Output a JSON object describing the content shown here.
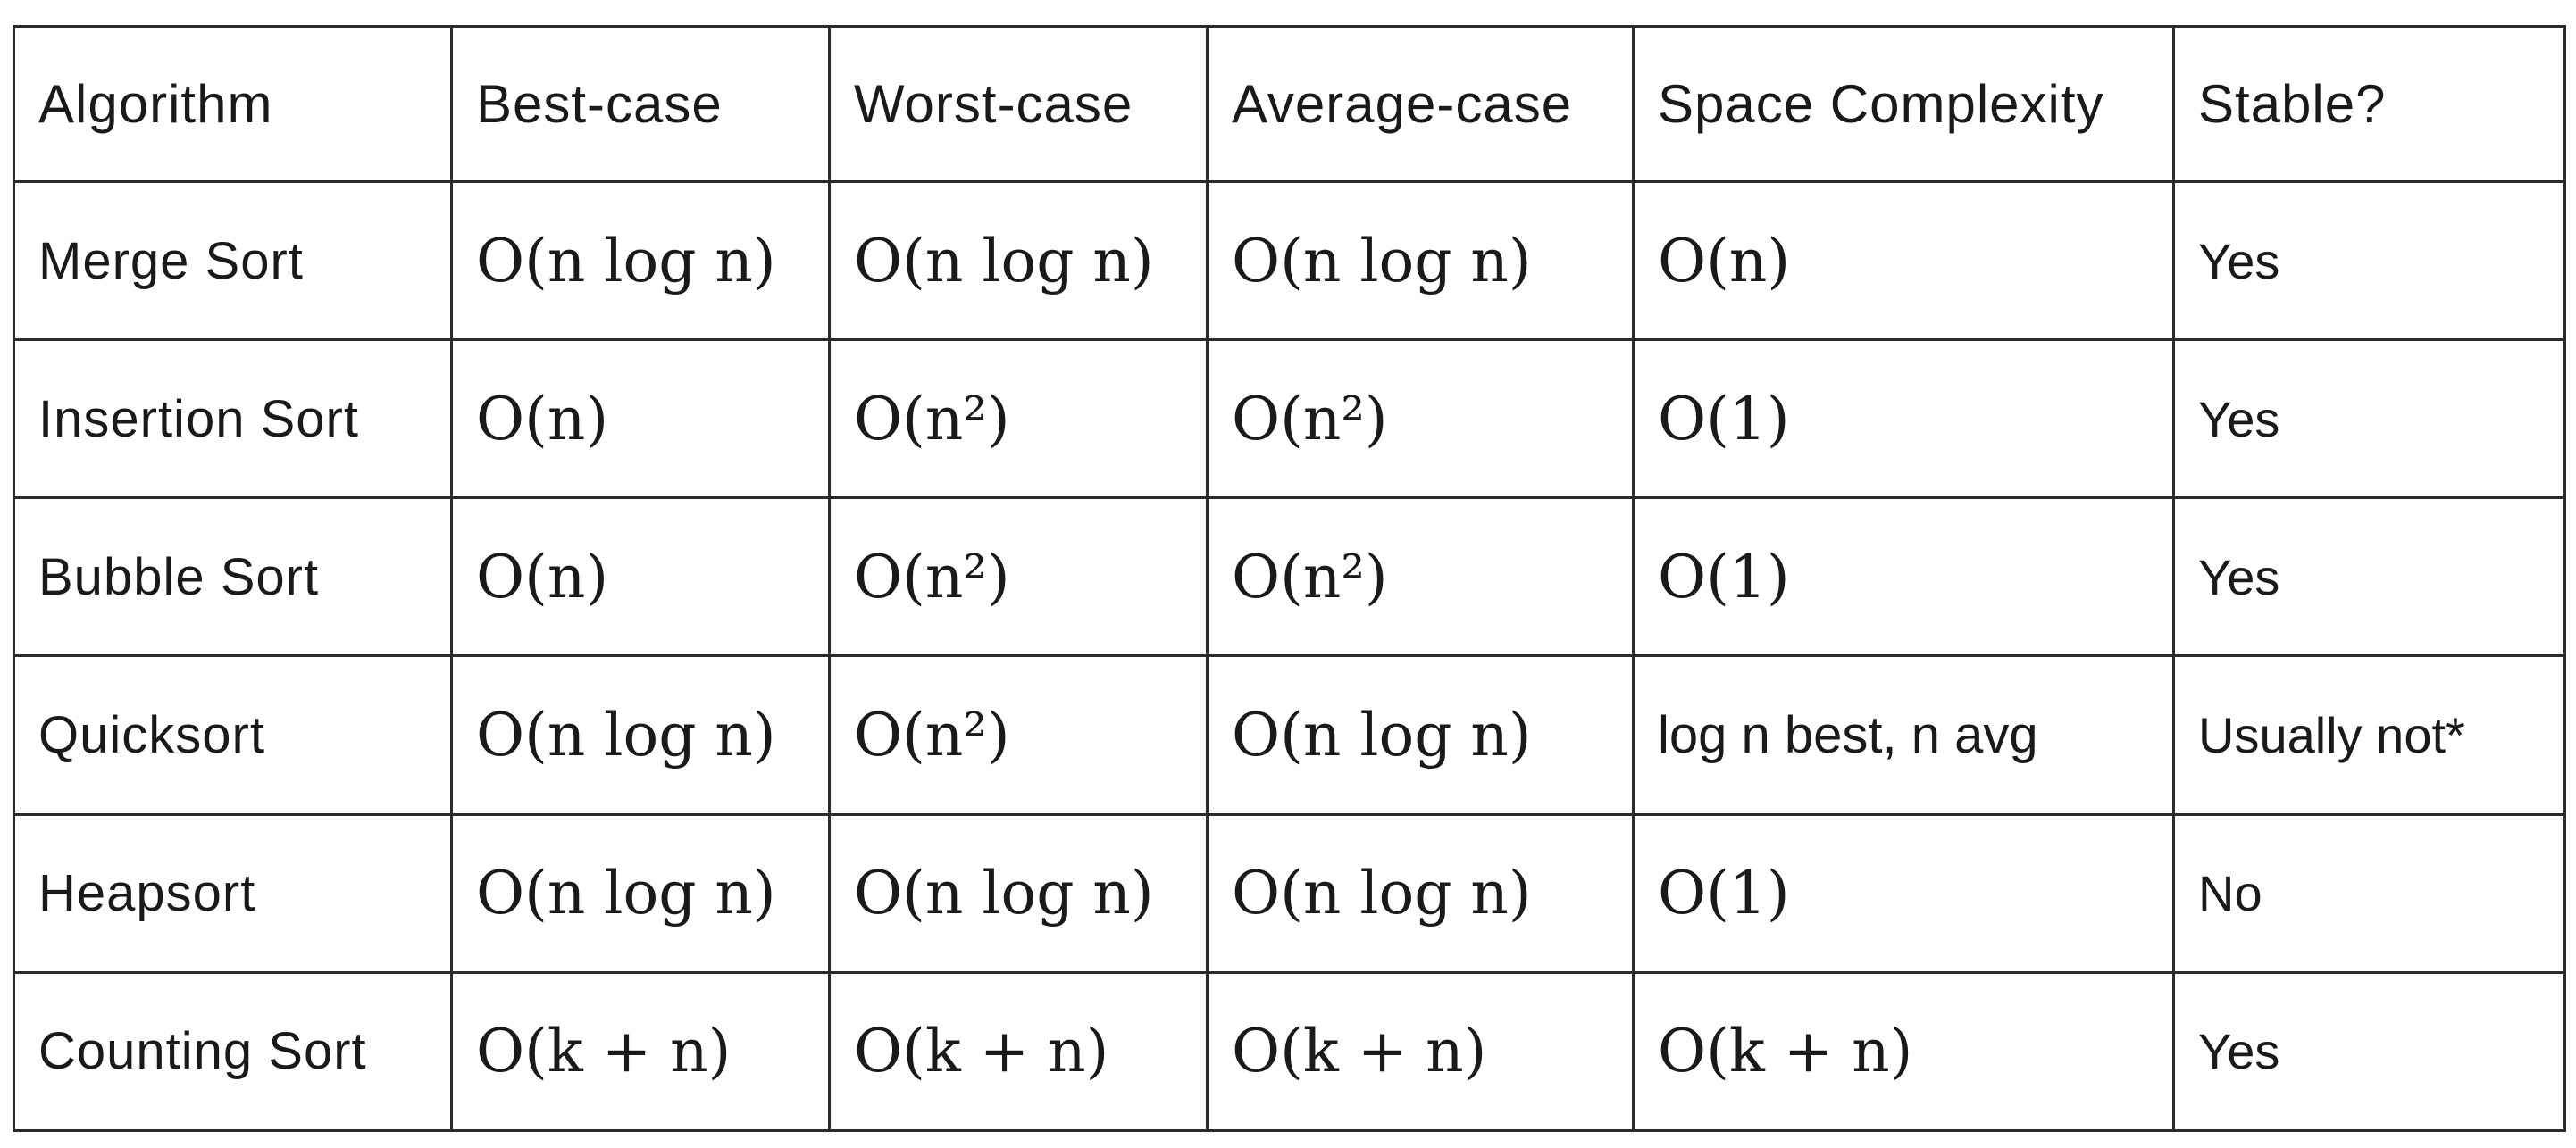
{
  "table": {
    "headers": [
      "Algorithm",
      "Best-case",
      "Worst-case",
      "Average-case",
      "Space Complexity",
      "Stable?"
    ],
    "rows": [
      {
        "algorithm": "Merge Sort",
        "best": "O(n log n)",
        "worst": "O(n log n)",
        "average": "O(n log n)",
        "space": "O(n)",
        "stable": "Yes"
      },
      {
        "algorithm": "Insertion Sort",
        "best": "O(n)",
        "worst": "O(n²)",
        "average": "O(n²)",
        "space": "O(1)",
        "stable": "Yes"
      },
      {
        "algorithm": "Bubble Sort",
        "best": "O(n)",
        "worst": "O(n²)",
        "average": "O(n²)",
        "space": "O(1)",
        "stable": "Yes"
      },
      {
        "algorithm": "Quicksort",
        "best": "O(n log n)",
        "worst": "O(n²)",
        "average": "O(n log n)",
        "space": "log n best, n avg",
        "stable": "Usually not*"
      },
      {
        "algorithm": "Heapsort",
        "best": "O(n log n)",
        "worst": "O(n log n)",
        "average": "O(n log n)",
        "space": "O(1)",
        "stable": "No"
      },
      {
        "algorithm": "Counting Sort",
        "best": "O(k + n)",
        "worst": "O(k + n)",
        "average": "O(k + n)",
        "space": "O(k + n)",
        "stable": "Yes"
      }
    ]
  },
  "colors": {
    "link": "#3a7cc2",
    "border": "#2b2b2b",
    "text": "#1a1a1a"
  }
}
